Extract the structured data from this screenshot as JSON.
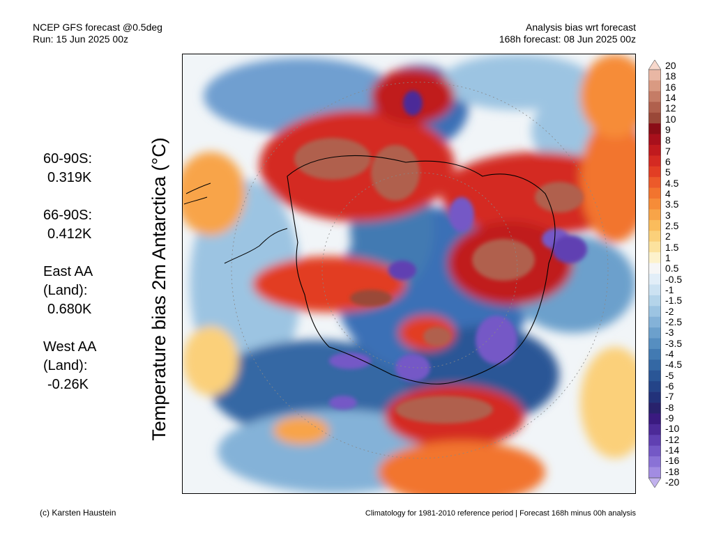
{
  "header": {
    "left_line1": "NCEP GFS forecast @0.5deg",
    "left_line2": "Run: 15 Jun 2025 00z",
    "right_line1": "Analysis bias wrt forecast",
    "right_line2": "168h forecast: 08 Jun 2025 00z"
  },
  "stats": [
    {
      "label": "60-90S:",
      "value": "0.319K"
    },
    {
      "label": "66-90S:",
      "value": "0.412K"
    },
    {
      "label": "East AA\n(Land):",
      "value": "0.680K"
    },
    {
      "label": "West AA\n(Land):",
      "value": "-0.26K"
    }
  ],
  "map": {
    "title": "Temperature bias 2m Antarctica (°C)"
  },
  "colorbar": {
    "labels": [
      "20",
      "18",
      "16",
      "14",
      "12",
      "10",
      "9",
      "8",
      "7",
      "6",
      "5",
      "4.5",
      "4",
      "3.5",
      "3",
      "2.5",
      "2",
      "1.5",
      "1",
      "0.5",
      "-0.5",
      "-1",
      "-1.5",
      "-2",
      "-2.5",
      "-3",
      "-3.5",
      "-4",
      "-4.5",
      "-5",
      "-6",
      "-7",
      "-8",
      "-9",
      "-10",
      "-12",
      "-14",
      "-16",
      "-18",
      "-20"
    ],
    "colors": [
      "#f7d8cc",
      "#e9b7a4",
      "#d99a82",
      "#c57c66",
      "#b0604d",
      "#9a4838",
      "#8a0d16",
      "#a8101c",
      "#c01a1e",
      "#d42a22",
      "#e23e24",
      "#ec5a2a",
      "#f2742e",
      "#f68c38",
      "#f8a448",
      "#fabc5c",
      "#fbd07a",
      "#fce29e",
      "#fdf2cc",
      "#f6f6f6",
      "#e2eef8",
      "#cce2f2",
      "#b4d4ea",
      "#9cc4e2",
      "#84b2d8",
      "#6ca0cc",
      "#568ec0",
      "#427ab2",
      "#3468a4",
      "#2a5696",
      "#244488",
      "#22327a",
      "#28226c",
      "#3a1a80",
      "#4c2a98",
      "#6040b2",
      "#7458c6",
      "#8a72d6",
      "#a28ce2",
      "#c2b2ee"
    ]
  },
  "footer": {
    "credit": "(c) Karsten Haustein",
    "note": "Climatology for 1981-2010 reference period | Forecast 168h minus 00h analysis"
  }
}
